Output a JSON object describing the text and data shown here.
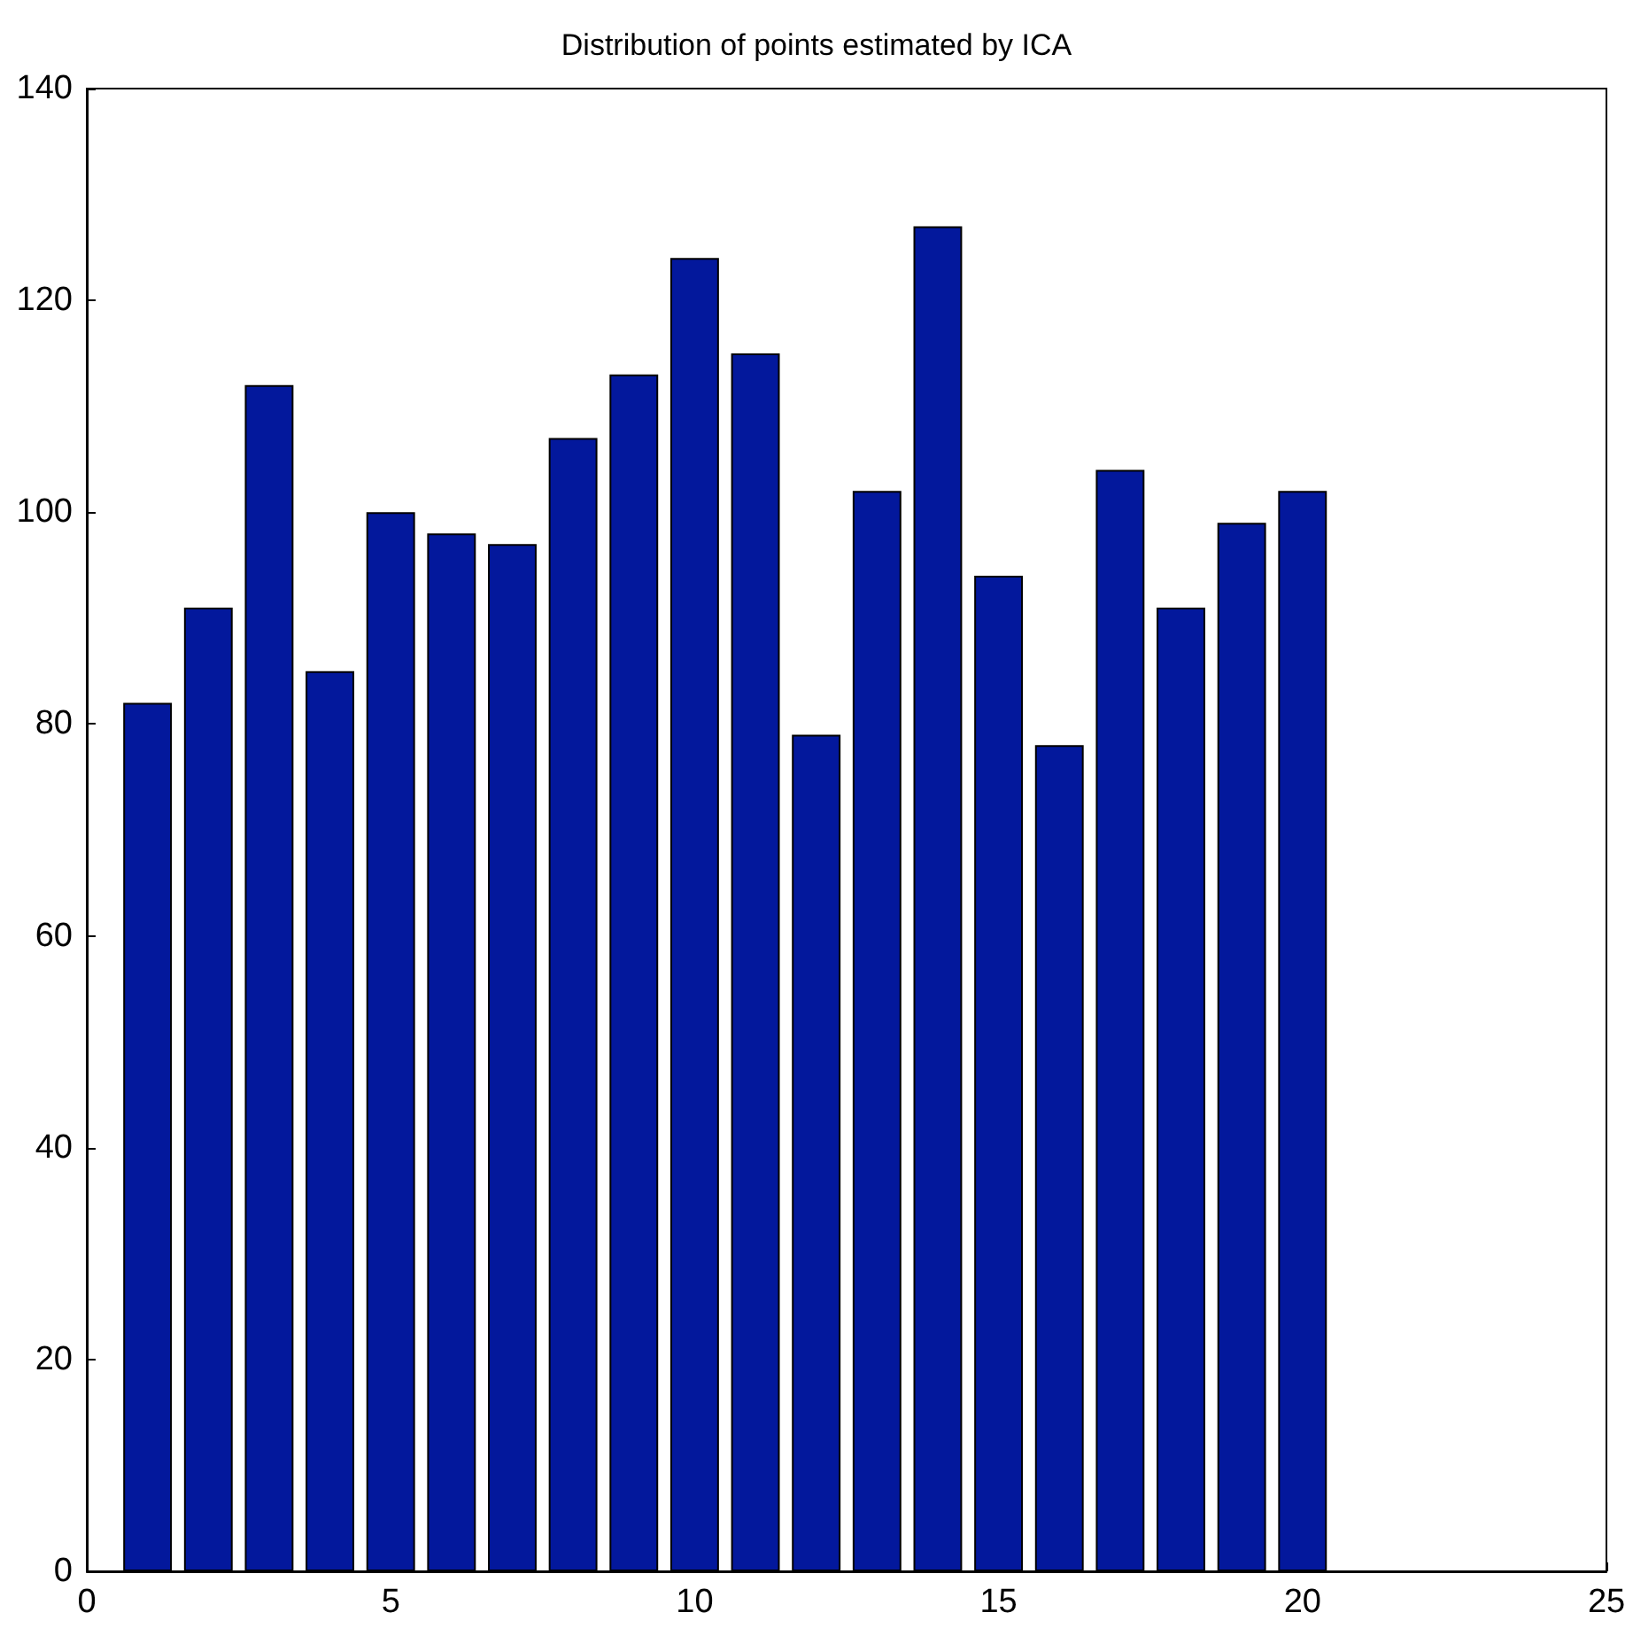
{
  "chart_data": {
    "type": "bar",
    "title": "Distribution of points estimated by ICA",
    "x": [
      1,
      2,
      3,
      4,
      5,
      6,
      7,
      8,
      9,
      10,
      11,
      12,
      13,
      14,
      15,
      16,
      17,
      18,
      19,
      20
    ],
    "values": [
      82,
      91,
      112,
      85,
      100,
      98,
      97,
      107,
      113,
      124,
      115,
      79,
      102,
      127,
      94,
      78,
      104,
      91,
      99,
      102
    ],
    "color": "#03189c",
    "xlim": [
      0,
      25
    ],
    "xticks": [
      0,
      5,
      10,
      15,
      20,
      25
    ],
    "ylim": [
      0,
      140
    ],
    "yticks": [
      0,
      20,
      40,
      60,
      80,
      100,
      120,
      140
    ],
    "grid": false
  }
}
